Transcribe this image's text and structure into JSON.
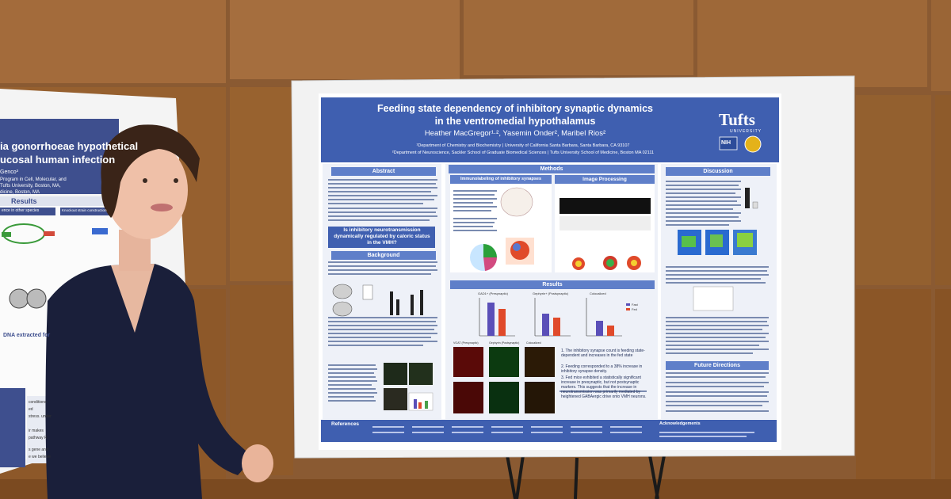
{
  "poster": {
    "title_line1": "Feeding state dependency of inhibitory synaptic dynamics",
    "title_line2": "in the ventromedial hypothalamus",
    "authors": "Heather MacGregor¹·², Yasemin Onder², Maribel Rios²",
    "affil1": "¹Department of Chemistry and Biochemistry | University of California Santa Barbara, Santa Barbara, CA 93107",
    "affil2": "²Department of Neuroscience, Sackler School of Graduate Biomedical Sciences | Tufts University School of Medicine, Boston MA 02111",
    "logo_text": "Tufts",
    "logo_subtext": "UNIVERSITY",
    "logo_nih": "NIH",
    "sections": {
      "abstract": "Abstract",
      "methods": "Methods",
      "immuno": "Immunolabeling of inhibitory synapses",
      "imaging": "Image Processing",
      "question": "Is inhibitory neurotransmission dynamically regulated by caloric status in the VMH?",
      "background": "Background",
      "results": "Results",
      "discussion": "Discussion",
      "future": "Future Directions",
      "references": "References",
      "acknowledgements": "Acknowledgements"
    },
    "result_points": [
      "1. The inhibitory synapse count is feeding state-dependent and increases in the fed state",
      "2. Feeding corresponded to a 38% increase in inhibitory synapse density.",
      "3. Fed mice exhibited a statistically significant increase in presynaptic, but not postsynaptic markers. This suggests that the increase in neurotransmission was primarily mediated by heightened GABAergic drive onto VMH neurons."
    ],
    "chart_labels": [
      "GAD1+ (Presynaptic)",
      "Gephyrin+ (Postsynaptic)",
      "Colocalized"
    ],
    "legend": [
      "Fast",
      "Fed"
    ],
    "image_labels": [
      "VGAT (Presynaptic)",
      "Gephyrin (Postsynaptic)",
      "Colocalized"
    ]
  },
  "left_poster": {
    "title_line1": "ia gonorrhoeae hypothetical",
    "title_line2": "ucosal human infection",
    "author": "Genco³",
    "affil_lines": [
      "Program in Cell, Molecular, and",
      "Tufts University, Boston, MA,",
      "dicine, Boston, MA"
    ],
    "results_head": "Results",
    "box1": "ence in other species",
    "box2": "Knockout strain construction",
    "caption": "DNA extracted for",
    "bottom_lines": [
      "conditions:",
      "ed",
      "stress. under",
      "ir makes",
      "pathway R",
      "s gene and",
      "e we believe"
    ]
  },
  "colors": {
    "wall": "#8a5a32",
    "poster_blue": "#3f5fb0",
    "header_blue": "#5f7fc9",
    "bar_purple": "#5a4fb8",
    "bar_red": "#e04a2a",
    "shirt": "#1a1f3a"
  }
}
